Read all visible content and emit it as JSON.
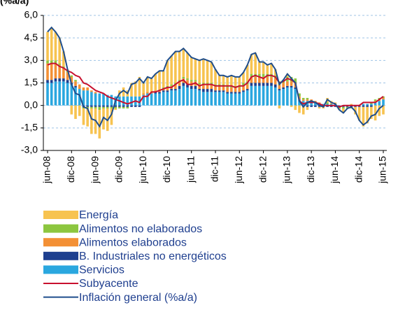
{
  "chart_data": {
    "type": "bar",
    "stacked": true,
    "title": "(%a/a)",
    "categories": [
      "jun-08",
      null,
      null,
      null,
      null,
      null,
      "dic-08",
      null,
      null,
      null,
      null,
      null,
      "jun-09",
      null,
      null,
      null,
      null,
      null,
      "dic-09",
      null,
      null,
      null,
      null,
      null,
      "jun-10",
      null,
      null,
      null,
      null,
      null,
      "dic-10",
      null,
      null,
      null,
      null,
      null,
      "jun-11",
      null,
      null,
      null,
      null,
      null,
      "dic-11",
      null,
      null,
      null,
      null,
      null,
      "jun-12",
      null,
      null,
      null,
      null,
      null,
      "dic-12",
      null,
      null,
      null,
      null,
      null,
      "jun-13",
      null,
      null,
      null,
      null,
      null,
      "dic-13",
      null,
      null,
      null,
      null,
      null,
      "jun-14",
      null,
      null,
      null,
      null,
      null,
      "dic-14",
      null,
      null,
      null,
      null,
      null,
      "jun-15"
    ],
    "ylim": [
      -3,
      6
    ],
    "yticks": [
      {
        "value": -3,
        "label": "-3,0"
      },
      {
        "value": -1.5,
        "label": "-1,5"
      },
      {
        "value": 0,
        "label": "0,0"
      },
      {
        "value": 1.5,
        "label": "1,5"
      },
      {
        "value": 3,
        "label": "3,0"
      },
      {
        "value": 4.5,
        "label": "4,5"
      },
      {
        "value": 6,
        "label": "6,0"
      }
    ],
    "grid": true,
    "legend": "bottom",
    "series": [
      {
        "name": "Energía",
        "color": "#f7c350",
        "values": [
          1.9,
          2.2,
          1.9,
          1.7,
          1.0,
          0.1,
          -0.6,
          -0.9,
          -0.7,
          -1.1,
          -1.2,
          -1.7,
          -1.7,
          -1.9,
          -1.4,
          -1.5,
          -1.1,
          -0.1,
          0.4,
          0.6,
          0.4,
          0.9,
          1.0,
          1.3,
          0.7,
          1.0,
          0.9,
          1.1,
          1.3,
          1.1,
          1.7,
          1.9,
          2.1,
          1.9,
          1.9,
          1.7,
          1.5,
          1.4,
          1.5,
          1.6,
          1.5,
          1.4,
          1.0,
          0.6,
          0.6,
          0.6,
          0.7,
          0.6,
          0.6,
          0.7,
          1.1,
          1.3,
          1.4,
          0.8,
          0.8,
          0.6,
          0.7,
          0.4,
          -0.2,
          0.0,
          0.2,
          -0.1,
          -0.3,
          -0.5,
          -0.5,
          -0.2,
          0.0,
          0.0,
          -0.1,
          -0.1,
          0.3,
          0.2,
          0.1,
          -0.1,
          -0.3,
          0.0,
          0.1,
          -0.5,
          -0.9,
          -1.3,
          -1.1,
          -0.8,
          -1.0,
          -0.7,
          -0.6
        ]
      },
      {
        "name": "Alimentos no elaborados",
        "color": "#8cc63f",
        "values": [
          0.2,
          0.2,
          0.2,
          0.1,
          0.1,
          0.1,
          0.1,
          0.1,
          0.0,
          -0.1,
          -0.1,
          -0.1,
          -0.1,
          -0.2,
          -0.1,
          -0.1,
          -0.1,
          -0.1,
          -0.1,
          -0.1,
          -0.1,
          0.0,
          0.0,
          0.0,
          0.0,
          0.0,
          0.0,
          0.0,
          0.0,
          0.1,
          0.1,
          0.1,
          0.1,
          0.1,
          0.1,
          0.1,
          0.1,
          0.1,
          0.1,
          0.1,
          0.1,
          0.1,
          0.1,
          0.1,
          0.1,
          0.1,
          0.1,
          0.1,
          0.1,
          0.2,
          0.2,
          0.2,
          0.2,
          0.2,
          0.2,
          0.2,
          0.2,
          0.2,
          0.2,
          0.2,
          0.3,
          0.3,
          0.3,
          0.2,
          0.1,
          0.1,
          0.0,
          0.0,
          0.0,
          0.0,
          0.1,
          0.0,
          0.0,
          -0.1,
          -0.1,
          -0.1,
          -0.1,
          0.0,
          0.0,
          0.0,
          0.0,
          0.1,
          0.1,
          0.1,
          0.1
        ]
      },
      {
        "name": "Alimentos elaborados",
        "color": "#f39035",
        "values": [
          1.1,
          1.1,
          1.0,
          0.9,
          0.7,
          0.5,
          0.4,
          0.3,
          0.3,
          0.2,
          0.2,
          0.1,
          0.1,
          0.0,
          0.0,
          0.0,
          0.0,
          0.0,
          0.0,
          0.0,
          0.0,
          0.0,
          0.0,
          0.0,
          0.1,
          0.1,
          0.1,
          0.1,
          0.1,
          0.1,
          0.2,
          0.2,
          0.3,
          0.3,
          0.3,
          0.3,
          0.3,
          0.3,
          0.3,
          0.3,
          0.3,
          0.3,
          0.3,
          0.3,
          0.3,
          0.3,
          0.3,
          0.3,
          0.3,
          0.3,
          0.3,
          0.4,
          0.4,
          0.4,
          0.4,
          0.4,
          0.4,
          0.4,
          0.3,
          0.3,
          0.3,
          0.3,
          0.3,
          0.2,
          0.1,
          0.1,
          0.1,
          0.1,
          0.1,
          0.0,
          0.0,
          0.0,
          0.0,
          0.0,
          0.0,
          0.0,
          0.0,
          0.0,
          0.0,
          0.0,
          0.0,
          0.0,
          0.1,
          0.1,
          0.1
        ]
      },
      {
        "name": "B. Industriales no energéticos",
        "color": "#1d3f8f",
        "values": [
          0.2,
          0.2,
          0.2,
          0.2,
          0.2,
          0.2,
          0.1,
          0.1,
          0.0,
          -0.1,
          -0.1,
          -0.1,
          -0.1,
          -0.1,
          -0.1,
          -0.1,
          -0.1,
          -0.1,
          -0.1,
          -0.1,
          -0.1,
          -0.1,
          -0.1,
          -0.1,
          0.0,
          0.0,
          0.0,
          0.1,
          0.1,
          0.1,
          0.1,
          0.1,
          0.1,
          0.2,
          0.2,
          0.2,
          0.2,
          0.2,
          0.1,
          0.2,
          0.2,
          0.2,
          0.1,
          0.1,
          0.1,
          0.1,
          0.1,
          0.1,
          0.1,
          0.1,
          0.1,
          0.2,
          0.2,
          0.2,
          0.2,
          0.2,
          0.2,
          0.2,
          0.1,
          0.1,
          0.1,
          0.1,
          0.1,
          0.0,
          -0.1,
          -0.1,
          -0.1,
          -0.1,
          -0.1,
          -0.1,
          -0.1,
          -0.1,
          -0.1,
          -0.1,
          -0.1,
          -0.1,
          -0.1,
          -0.1,
          -0.1,
          -0.1,
          -0.1,
          -0.1,
          0.0,
          0.0,
          0.0
        ]
      },
      {
        "name": "Servicios",
        "color": "#2aa7df",
        "values": [
          1.5,
          1.5,
          1.6,
          1.6,
          1.6,
          1.5,
          1.4,
          1.2,
          1.1,
          1.0,
          1.0,
          0.9,
          0.8,
          0.8,
          0.8,
          0.7,
          0.7,
          0.6,
          0.6,
          0.6,
          0.6,
          0.6,
          0.6,
          0.6,
          0.7,
          0.8,
          0.8,
          0.8,
          0.8,
          0.9,
          0.9,
          1.0,
          1.0,
          1.1,
          1.3,
          1.2,
          1.1,
          1.1,
          1.0,
          0.9,
          0.9,
          0.9,
          0.9,
          0.9,
          0.9,
          0.8,
          0.8,
          0.8,
          0.8,
          0.9,
          1.0,
          1.3,
          1.3,
          1.3,
          1.3,
          1.3,
          1.3,
          1.2,
          1.0,
          1.1,
          1.2,
          1.2,
          1.1,
          0.4,
          0.3,
          0.3,
          0.3,
          0.2,
          0.1,
          0.1,
          0.1,
          0.1,
          0.1,
          0.0,
          0.0,
          0.0,
          0.0,
          0.0,
          0.0,
          0.1,
          0.1,
          0.1,
          0.2,
          0.3,
          0.4
        ]
      },
      {
        "name": "Subyacente",
        "type": "line",
        "color": "#c8102e",
        "values": [
          2.7,
          2.8,
          2.8,
          2.6,
          2.5,
          2.3,
          2.2,
          2.0,
          1.9,
          1.5,
          1.4,
          1.2,
          1.0,
          0.9,
          0.8,
          0.6,
          0.5,
          0.4,
          0.3,
          0.2,
          0.1,
          0.2,
          0.3,
          0.2,
          0.6,
          0.6,
          0.9,
          0.9,
          1.0,
          1.1,
          1.2,
          1.2,
          1.4,
          1.6,
          1.7,
          1.4,
          1.4,
          1.5,
          1.3,
          1.4,
          1.4,
          1.4,
          1.3,
          1.3,
          1.3,
          1.3,
          1.3,
          1.2,
          1.3,
          1.3,
          1.5,
          1.9,
          2.0,
          1.9,
          1.8,
          2.0,
          2.0,
          1.9,
          1.5,
          1.6,
          1.8,
          1.7,
          1.5,
          0.3,
          0.1,
          0.2,
          0.2,
          0.2,
          0.1,
          0.0,
          0.0,
          0.0,
          0.0,
          -0.1,
          0.0,
          0.0,
          0.0,
          0.0,
          0.0,
          0.2,
          0.2,
          0.2,
          0.2,
          0.4,
          0.6
        ]
      },
      {
        "name": "Inflación general (%a/a)",
        "type": "line",
        "color": "#1f4e8c",
        "values": [
          4.9,
          5.2,
          4.9,
          4.5,
          3.6,
          2.4,
          1.4,
          0.8,
          0.7,
          -0.1,
          -0.2,
          -0.9,
          -1.0,
          -1.4,
          -0.8,
          -1.0,
          -0.6,
          0.3,
          0.8,
          1.0,
          0.8,
          1.4,
          1.5,
          1.8,
          1.5,
          1.9,
          1.8,
          2.1,
          2.3,
          2.3,
          3.0,
          3.3,
          3.6,
          3.6,
          3.8,
          3.5,
          3.2,
          3.1,
          3.0,
          3.1,
          3.0,
          2.9,
          2.4,
          2.0,
          2.0,
          1.9,
          2.0,
          1.9,
          1.9,
          2.2,
          2.7,
          3.4,
          3.5,
          2.9,
          2.9,
          2.7,
          2.8,
          2.4,
          1.4,
          1.7,
          2.1,
          1.8,
          1.5,
          0.3,
          -0.1,
          0.2,
          0.3,
          0.2,
          0.0,
          -0.1,
          0.4,
          0.2,
          0.1,
          -0.3,
          -0.5,
          -0.2,
          -0.1,
          -0.4,
          -1.0,
          -1.3,
          -1.1,
          -0.7,
          -0.6,
          -0.2,
          0.0
        ]
      }
    ]
  }
}
